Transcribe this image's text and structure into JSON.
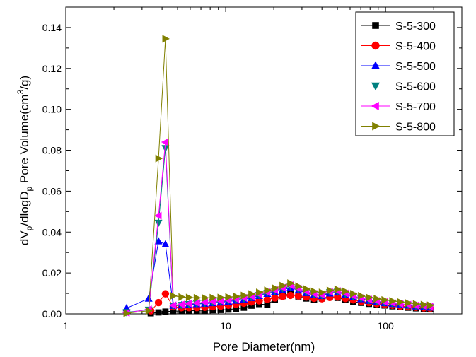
{
  "chart_data": {
    "type": "scatter",
    "title": "",
    "xlabel": "Pore Diameter(nm)",
    "ylabel_parts": [
      "dV",
      "p",
      "/dlogD",
      "p",
      " Pore Volume(cm",
      "3",
      "/g)"
    ],
    "xscale": "log",
    "xlim": [
      1,
      300
    ],
    "ylim": [
      0,
      0.15
    ],
    "x_ticks": [
      1,
      10,
      100
    ],
    "x_tick_labels": [
      "1",
      "10",
      "100"
    ],
    "y_ticks": [
      0,
      0.02,
      0.04,
      0.06,
      0.08,
      0.1,
      0.12,
      0.14
    ],
    "y_tick_labels": [
      "0.00",
      "0.02",
      "0.04",
      "0.06",
      "0.08",
      "0.10",
      "0.12",
      "0.14"
    ],
    "grid": false,
    "legend_position": "top-right",
    "series": [
      {
        "name": "S-5-300",
        "color": "#000000",
        "marker": "square",
        "x": [
          3.4,
          3.8,
          4.2,
          4.7,
          5.3,
          5.9,
          6.6,
          7.4,
          8.3,
          9.3,
          10.4,
          11.6,
          13.0,
          14.5,
          16.2,
          18.2,
          20.3,
          22.7,
          25.4,
          28.5,
          31.9,
          35.7,
          40.0,
          44.8,
          50.1,
          56.1,
          62.8,
          70.3,
          78.7,
          88.1,
          98.6,
          110.4,
          123.6,
          138.4,
          155.0,
          173.5,
          190.0
        ],
        "y": [
          0.0003,
          0.0007,
          0.0011,
          0.0013,
          0.0014,
          0.0015,
          0.0016,
          0.0017,
          0.0018,
          0.0019,
          0.0021,
          0.0025,
          0.003,
          0.004,
          0.0048,
          0.0045,
          0.007,
          0.0087,
          0.01,
          0.0085,
          0.0075,
          0.007,
          0.0075,
          0.0085,
          0.0078,
          0.0068,
          0.006,
          0.0054,
          0.0049,
          0.0045,
          0.0041,
          0.0037,
          0.0033,
          0.003,
          0.0027,
          0.0024,
          0.0022
        ]
      },
      {
        "name": "S-5-400",
        "color": "#ff0000",
        "marker": "circle",
        "x": [
          3.4,
          3.8,
          4.2,
          4.7,
          5.3,
          5.9,
          6.6,
          7.4,
          8.3,
          9.3,
          10.4,
          11.6,
          13.0,
          14.5,
          16.2,
          18.2,
          20.3,
          22.7,
          25.4,
          28.5,
          31.9,
          35.7,
          40.0,
          44.8,
          50.1,
          56.1,
          62.8,
          70.3,
          78.7,
          88.1,
          98.6,
          110.4,
          123.6,
          138.4,
          155.0,
          173.5,
          190.0
        ],
        "y": [
          0.0015,
          0.0055,
          0.0098,
          0.0035,
          0.003,
          0.003,
          0.003,
          0.0032,
          0.0035,
          0.0038,
          0.0042,
          0.0047,
          0.0052,
          0.0058,
          0.0064,
          0.007,
          0.0078,
          0.0085,
          0.009,
          0.0088,
          0.0082,
          0.0076,
          0.0074,
          0.008,
          0.0082,
          0.0075,
          0.0068,
          0.006,
          0.0055,
          0.005,
          0.0046,
          0.0042,
          0.0038,
          0.0035,
          0.0032,
          0.0029,
          0.0027
        ]
      },
      {
        "name": "S-5-500",
        "color": "#0000ff",
        "marker": "triangle-up",
        "x": [
          2.4,
          3.3,
          3.8,
          4.2,
          4.7,
          5.3,
          5.9,
          6.6,
          7.4,
          8.3,
          9.3,
          10.4,
          11.6,
          13.0,
          14.5,
          16.2,
          18.2,
          20.3,
          22.7,
          25.4,
          28.5,
          31.9,
          35.7,
          40.0,
          44.8,
          50.1,
          56.1,
          62.8,
          70.3,
          78.7,
          88.1,
          98.6,
          110.4,
          123.6,
          138.4,
          155.0,
          173.5,
          190.0
        ],
        "y": [
          0.0028,
          0.0075,
          0.0355,
          0.034,
          0.004,
          0.0042,
          0.0045,
          0.0048,
          0.005,
          0.0053,
          0.0056,
          0.006,
          0.0065,
          0.007,
          0.0078,
          0.0088,
          0.0098,
          0.0108,
          0.0118,
          0.0128,
          0.0115,
          0.0102,
          0.0092,
          0.0088,
          0.01,
          0.0105,
          0.0094,
          0.0082,
          0.0072,
          0.0064,
          0.0058,
          0.0053,
          0.0049,
          0.0045,
          0.0041,
          0.0037,
          0.0034,
          0.0031
        ]
      },
      {
        "name": "S-5-600",
        "color": "#00807f",
        "marker": "triangle-down",
        "x": [
          2.4,
          3.3,
          3.8,
          4.2,
          4.7,
          5.3,
          5.9,
          6.6,
          7.4,
          8.3,
          9.3,
          10.4,
          11.6,
          13.0,
          14.5,
          16.2,
          18.2,
          20.3,
          22.7,
          25.4,
          28.5,
          31.9,
          35.7,
          40.0,
          44.8,
          50.1,
          56.1,
          62.8,
          70.3,
          78.7,
          88.1,
          98.6,
          110.4,
          123.6,
          138.4,
          155.0,
          173.5,
          190.0
        ],
        "y": [
          0.0008,
          0.002,
          0.0445,
          0.081,
          0.0038,
          0.0043,
          0.0047,
          0.005,
          0.0053,
          0.0057,
          0.006,
          0.0064,
          0.0069,
          0.0075,
          0.0082,
          0.0092,
          0.0102,
          0.0112,
          0.0124,
          0.0135,
          0.012,
          0.0106,
          0.0095,
          0.009,
          0.0105,
          0.0108,
          0.0097,
          0.0085,
          0.0075,
          0.0067,
          0.006,
          0.0055,
          0.005,
          0.0046,
          0.0042,
          0.0039,
          0.0036,
          0.0033
        ]
      },
      {
        "name": "S-5-700",
        "color": "#ff00ff",
        "marker": "triangle-left",
        "x": [
          2.4,
          3.3,
          3.8,
          4.2,
          4.7,
          5.3,
          5.9,
          6.6,
          7.4,
          8.3,
          9.3,
          10.4,
          11.6,
          13.0,
          14.5,
          16.2,
          18.2,
          20.3,
          22.7,
          25.4,
          28.5,
          31.9,
          35.7,
          40.0,
          44.8,
          50.1,
          56.1,
          62.8,
          70.3,
          78.7,
          88.1,
          98.6,
          110.4,
          123.6,
          138.4,
          155.0,
          173.5,
          190.0
        ],
        "y": [
          0.0005,
          0.0022,
          0.048,
          0.084,
          0.0042,
          0.0046,
          0.005,
          0.0053,
          0.0056,
          0.006,
          0.0063,
          0.0067,
          0.0072,
          0.0078,
          0.0086,
          0.0096,
          0.0106,
          0.0116,
          0.0128,
          0.014,
          0.0124,
          0.011,
          0.0098,
          0.0093,
          0.0108,
          0.0112,
          0.01,
          0.0088,
          0.0078,
          0.007,
          0.0063,
          0.0058,
          0.0053,
          0.0049,
          0.0045,
          0.0041,
          0.0038,
          0.0035
        ]
      },
      {
        "name": "S-5-800",
        "color": "#808000",
        "marker": "triangle-right",
        "x": [
          2.4,
          3.3,
          3.8,
          4.2,
          4.7,
          5.3,
          5.9,
          6.6,
          7.4,
          8.3,
          9.3,
          10.4,
          11.6,
          13.0,
          14.5,
          16.2,
          18.2,
          20.3,
          22.7,
          25.4,
          28.5,
          31.9,
          35.7,
          40.0,
          44.8,
          50.1,
          56.1,
          62.8,
          70.3,
          78.7,
          88.1,
          98.6,
          110.4,
          123.6,
          138.4,
          155.0,
          173.5,
          190.0
        ],
        "y": [
          0.0003,
          0.0015,
          0.076,
          0.1345,
          0.0088,
          0.0082,
          0.008,
          0.0078,
          0.0078,
          0.0079,
          0.008,
          0.0082,
          0.0085,
          0.009,
          0.0097,
          0.0105,
          0.0115,
          0.0126,
          0.0138,
          0.015,
          0.0135,
          0.0122,
          0.011,
          0.0105,
          0.0115,
          0.012,
          0.011,
          0.0098,
          0.0088,
          0.008,
          0.0074,
          0.0068,
          0.0063,
          0.0058,
          0.0053,
          0.0049,
          0.0045,
          0.0042
        ]
      }
    ]
  }
}
